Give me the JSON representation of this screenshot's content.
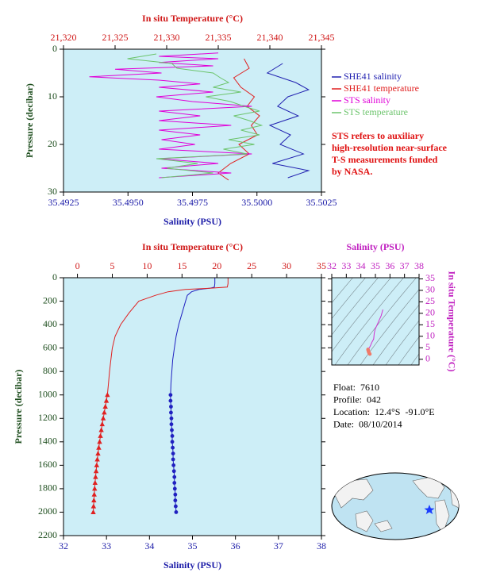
{
  "chart_data": [
    {
      "type": "line",
      "xlabel": "Salinity (PSU)",
      "x2label": "In situ Temperature (°C)",
      "ylabel": "Pressure (decibar)",
      "x_color": "#1c1ca8",
      "x2_color": "#d01818",
      "y_color": "#1d4d1d",
      "xlim": [
        35.4925,
        35.5025
      ],
      "xticks": [
        35.4925,
        {
          "value": 35.495,
          "label": "35.4950"
        },
        35.4975,
        {
          "value": 35.5,
          "label": "35.5000"
        },
        35.5025
      ],
      "x2lim": [
        21.32,
        21.345
      ],
      "x2ticks": [
        {
          "value": 21.32,
          "label": "21,320"
        },
        {
          "value": 21.325,
          "label": "21,325"
        },
        {
          "value": 21.33,
          "label": "21,330"
        },
        {
          "value": 21.335,
          "label": "21,335"
        },
        {
          "value": 21.34,
          "label": "21,340"
        },
        {
          "value": 21.345,
          "label": "21,345"
        }
      ],
      "ylim": [
        0,
        30
      ],
      "yticks": [
        0,
        10,
        20,
        30
      ],
      "y_inverted": true,
      "legend": "right",
      "series": [
        {
          "name": "SHE41 salinity",
          "color": "#2020b0",
          "x": [
            35.501,
            35.5004,
            35.5015,
            35.502,
            35.5012,
            35.5008,
            35.5016,
            35.5005,
            35.5013,
            35.5009,
            35.5018,
            35.5006,
            35.502,
            35.5012
          ],
          "y": [
            3,
            5,
            7,
            8.5,
            10,
            12,
            14,
            16,
            18,
            20,
            22,
            24,
            25.5,
            27
          ]
        },
        {
          "name": "SHE41 temperature",
          "color": "#e02020",
          "axis": "x2",
          "x": [
            21.3375,
            21.338,
            21.3365,
            21.3372,
            21.3385,
            21.3378,
            21.339,
            21.3382,
            21.3388,
            21.337,
            21.338,
            21.3362,
            21.335,
            21.336
          ],
          "y": [
            2,
            4,
            6,
            8,
            10,
            12,
            14,
            16,
            18,
            20,
            22,
            24,
            26,
            27.5
          ]
        },
        {
          "name": "STS salinity",
          "color": "#e000d8",
          "x": [
            35.4985,
            35.4962,
            35.4985,
            35.4962,
            35.4983,
            35.4945,
            35.4963,
            35.4935,
            35.4962,
            35.4978,
            35.4962,
            35.4983,
            35.4961,
            35.4975,
            35.4998,
            35.4962,
            35.4978,
            35.4962,
            35.499,
            35.4962,
            35.4978,
            35.4963,
            35.4976,
            35.4962,
            35.4998,
            35.4962,
            35.4985,
            35.4963,
            35.499,
            35.4962
          ],
          "y": [
            0.8,
            1.5,
            2,
            2.8,
            3.5,
            4.2,
            5,
            5.8,
            6.5,
            7.3,
            8,
            9,
            10,
            11,
            12,
            13,
            14,
            15,
            16,
            17,
            18,
            19,
            20,
            21,
            22,
            23,
            24,
            25,
            26,
            27
          ]
        },
        {
          "name": "STS temperature",
          "color": "#6cc46c",
          "axis": "x2",
          "x": [
            21.329,
            21.3262,
            21.3305,
            21.331,
            21.3345,
            21.3352,
            21.336,
            21.3345,
            21.3372,
            21.3338,
            21.3362,
            21.3375,
            21.339,
            21.3365,
            21.338,
            21.3392,
            21.3372,
            21.339,
            21.336,
            21.3385,
            21.3355,
            21.3378,
            21.329,
            21.333,
            21.33,
            21.3345,
            21.3295
          ],
          "y": [
            1,
            2,
            3,
            4,
            5,
            6,
            7,
            8,
            9,
            10,
            11,
            12,
            13,
            14,
            15,
            16,
            17,
            18,
            19,
            20,
            21,
            22,
            23,
            24,
            25,
            26,
            27
          ]
        }
      ],
      "note": [
        "STS refers to auxiliary",
        "high-resolution near-surface",
        "T-S measurements funded",
        "by NASA."
      ],
      "note_color": "#e01010"
    },
    {
      "type": "line",
      "xlabel": "Salinity (PSU)",
      "x2label": "In situ Temperature (°C)",
      "ylabel": "Pressure (decibar)",
      "x_color": "#1c1ca8",
      "x2_color": "#d01818",
      "y_color": "#1d4d1d",
      "xlim": [
        32,
        38
      ],
      "xticks": [
        32,
        33,
        34,
        35,
        36,
        37,
        38
      ],
      "x2lim": [
        -2,
        35
      ],
      "x2ticks": [
        0,
        5,
        10,
        15,
        20,
        25,
        30,
        35
      ],
      "ylim": [
        0,
        2200
      ],
      "yticks": [
        0,
        200,
        400,
        600,
        800,
        1000,
        1200,
        1400,
        1600,
        1800,
        2000,
        2200
      ],
      "y_inverted": true,
      "series": [
        {
          "color": "#2020c0",
          "x": [
            35.52,
            35.52,
            35.51,
            35.4,
            35.15,
            34.98,
            34.88,
            34.84,
            34.76,
            34.68,
            34.62,
            34.58,
            34.54,
            34.52,
            34.5,
            34.49
          ],
          "y": [
            0,
            50,
            80,
            90,
            100,
            120,
            150,
            200,
            300,
            400,
            500,
            600,
            700,
            800,
            900,
            1000
          ]
        },
        {
          "color": "#2020c0",
          "marker": "circle",
          "x": [
            34.49,
            34.49,
            34.5,
            34.5,
            34.51,
            34.51,
            34.52,
            34.53,
            34.53,
            34.54,
            34.55,
            34.55,
            34.56,
            34.57,
            34.58,
            34.58,
            34.59,
            34.6,
            34.6,
            34.61,
            34.62
          ],
          "y": [
            1000,
            1050,
            1100,
            1150,
            1200,
            1250,
            1300,
            1350,
            1400,
            1450,
            1500,
            1550,
            1600,
            1650,
            1700,
            1750,
            1800,
            1850,
            1900,
            1950,
            2000
          ]
        },
        {
          "color": "#e02020",
          "axis": "x2",
          "x": [
            21.6,
            21.6,
            21.5,
            19.0,
            15.5,
            13.0,
            11.2,
            8.8,
            7.4,
            6.2,
            5.4,
            5.0,
            4.8,
            4.6,
            4.45,
            4.3
          ],
          "y": [
            0,
            50,
            80,
            90,
            100,
            120,
            150,
            200,
            300,
            400,
            500,
            600,
            700,
            800,
            900,
            1000
          ]
        },
        {
          "color": "#e02020",
          "axis": "x2",
          "marker": "triangle",
          "x": [
            4.3,
            4.15,
            4.0,
            3.85,
            3.7,
            3.55,
            3.42,
            3.3,
            3.18,
            3.06,
            2.95,
            2.85,
            2.76,
            2.68,
            2.6,
            2.53,
            2.47,
            2.41,
            2.36,
            2.31,
            2.27
          ],
          "y": [
            1000,
            1050,
            1100,
            1150,
            1200,
            1250,
            1300,
            1350,
            1400,
            1450,
            1500,
            1550,
            1600,
            1650,
            1700,
            1750,
            1800,
            1850,
            1900,
            1950,
            2000
          ]
        }
      ],
      "info": [
        "Float:  7610",
        "Profile:  042",
        "Location:  12.4°S  -91.0°E",
        "Date:  08/10/2014"
      ]
    },
    {
      "type": "line",
      "xlabel": "Salinity (PSU)",
      "ylabel": "In situ Temperature (°C)",
      "x_color": "#c020c0",
      "y_color": "#c020c0",
      "x_axis_side": "top",
      "y_axis_side": "right",
      "xlim": [
        32,
        38
      ],
      "xticks": [
        32,
        33,
        34,
        35,
        36,
        37,
        38
      ],
      "ylim": [
        -2.5,
        35.5
      ],
      "yticks": [
        0,
        5,
        10,
        15,
        20,
        25,
        30,
        35
      ],
      "series": [
        {
          "color": "#d030d0",
          "x": [
            35.52,
            35.51,
            35.4,
            35.15,
            34.98,
            34.92,
            34.88,
            34.76,
            34.68,
            34.62,
            34.58,
            34.54,
            34.52,
            34.5,
            34.49
          ],
          "y": [
            21.6,
            21.5,
            19.0,
            15.5,
            13.0,
            11.2,
            8.8,
            7.4,
            6.2,
            5.4,
            5.0,
            4.8,
            4.6,
            4.45,
            4.3
          ]
        },
        {
          "color": "#f07a6a",
          "marker": "circle",
          "line": false,
          "x": [
            34.49,
            34.5,
            34.51,
            34.53,
            34.55,
            34.57,
            34.59,
            34.62
          ],
          "y": [
            4.3,
            4.0,
            3.7,
            3.3,
            2.95,
            2.68,
            2.47,
            2.27
          ]
        }
      ]
    }
  ]
}
